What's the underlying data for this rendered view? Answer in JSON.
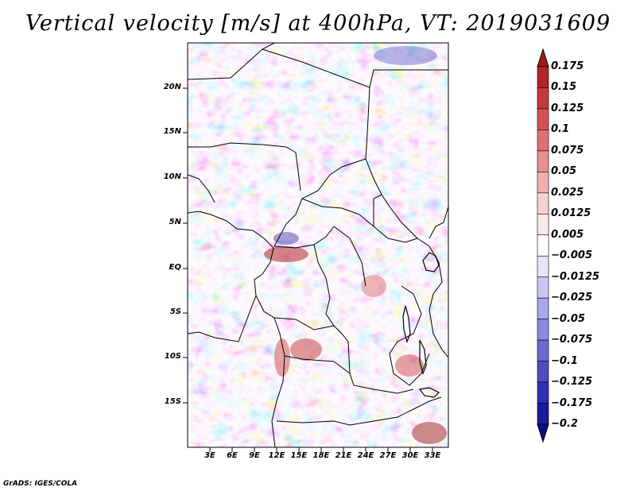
{
  "title": "Vertical velocity [m/s] at 400hPa, VT: 2019031609",
  "credit": "GrADS: IGES/COLA",
  "map": {
    "lat_labels": [
      "20N",
      "15N",
      "10N",
      "5N",
      "EQ",
      "5S",
      "10S",
      "15S"
    ],
    "lon_labels": [
      "3E",
      "6E",
      "9E",
      "12E",
      "15E",
      "18E",
      "21E",
      "24E",
      "27E",
      "30E",
      "33E"
    ]
  },
  "colorbar": {
    "labels": [
      "0.175",
      "0.15",
      "0.125",
      "0.1",
      "0.075",
      "0.05",
      "0.025",
      "0.0125",
      "0.005",
      "−0.005",
      "−0.0125",
      "−0.025",
      "−0.05",
      "−0.075",
      "−0.1",
      "−0.125",
      "−0.175",
      "−0.2"
    ],
    "colors": [
      "#9e1a1a",
      "#b52424",
      "#c83838",
      "#d65252",
      "#e07070",
      "#e88f8f",
      "#f0b0b0",
      "#f7d0d0",
      "#fbe8e8",
      "#ffffff",
      "#e6e6fa",
      "#c8c8f2",
      "#a8a8ea",
      "#8a8ae0",
      "#6a6ad4",
      "#4c4cc6",
      "#3030b4",
      "#1a1a9e",
      "#0c0c80"
    ]
  }
}
